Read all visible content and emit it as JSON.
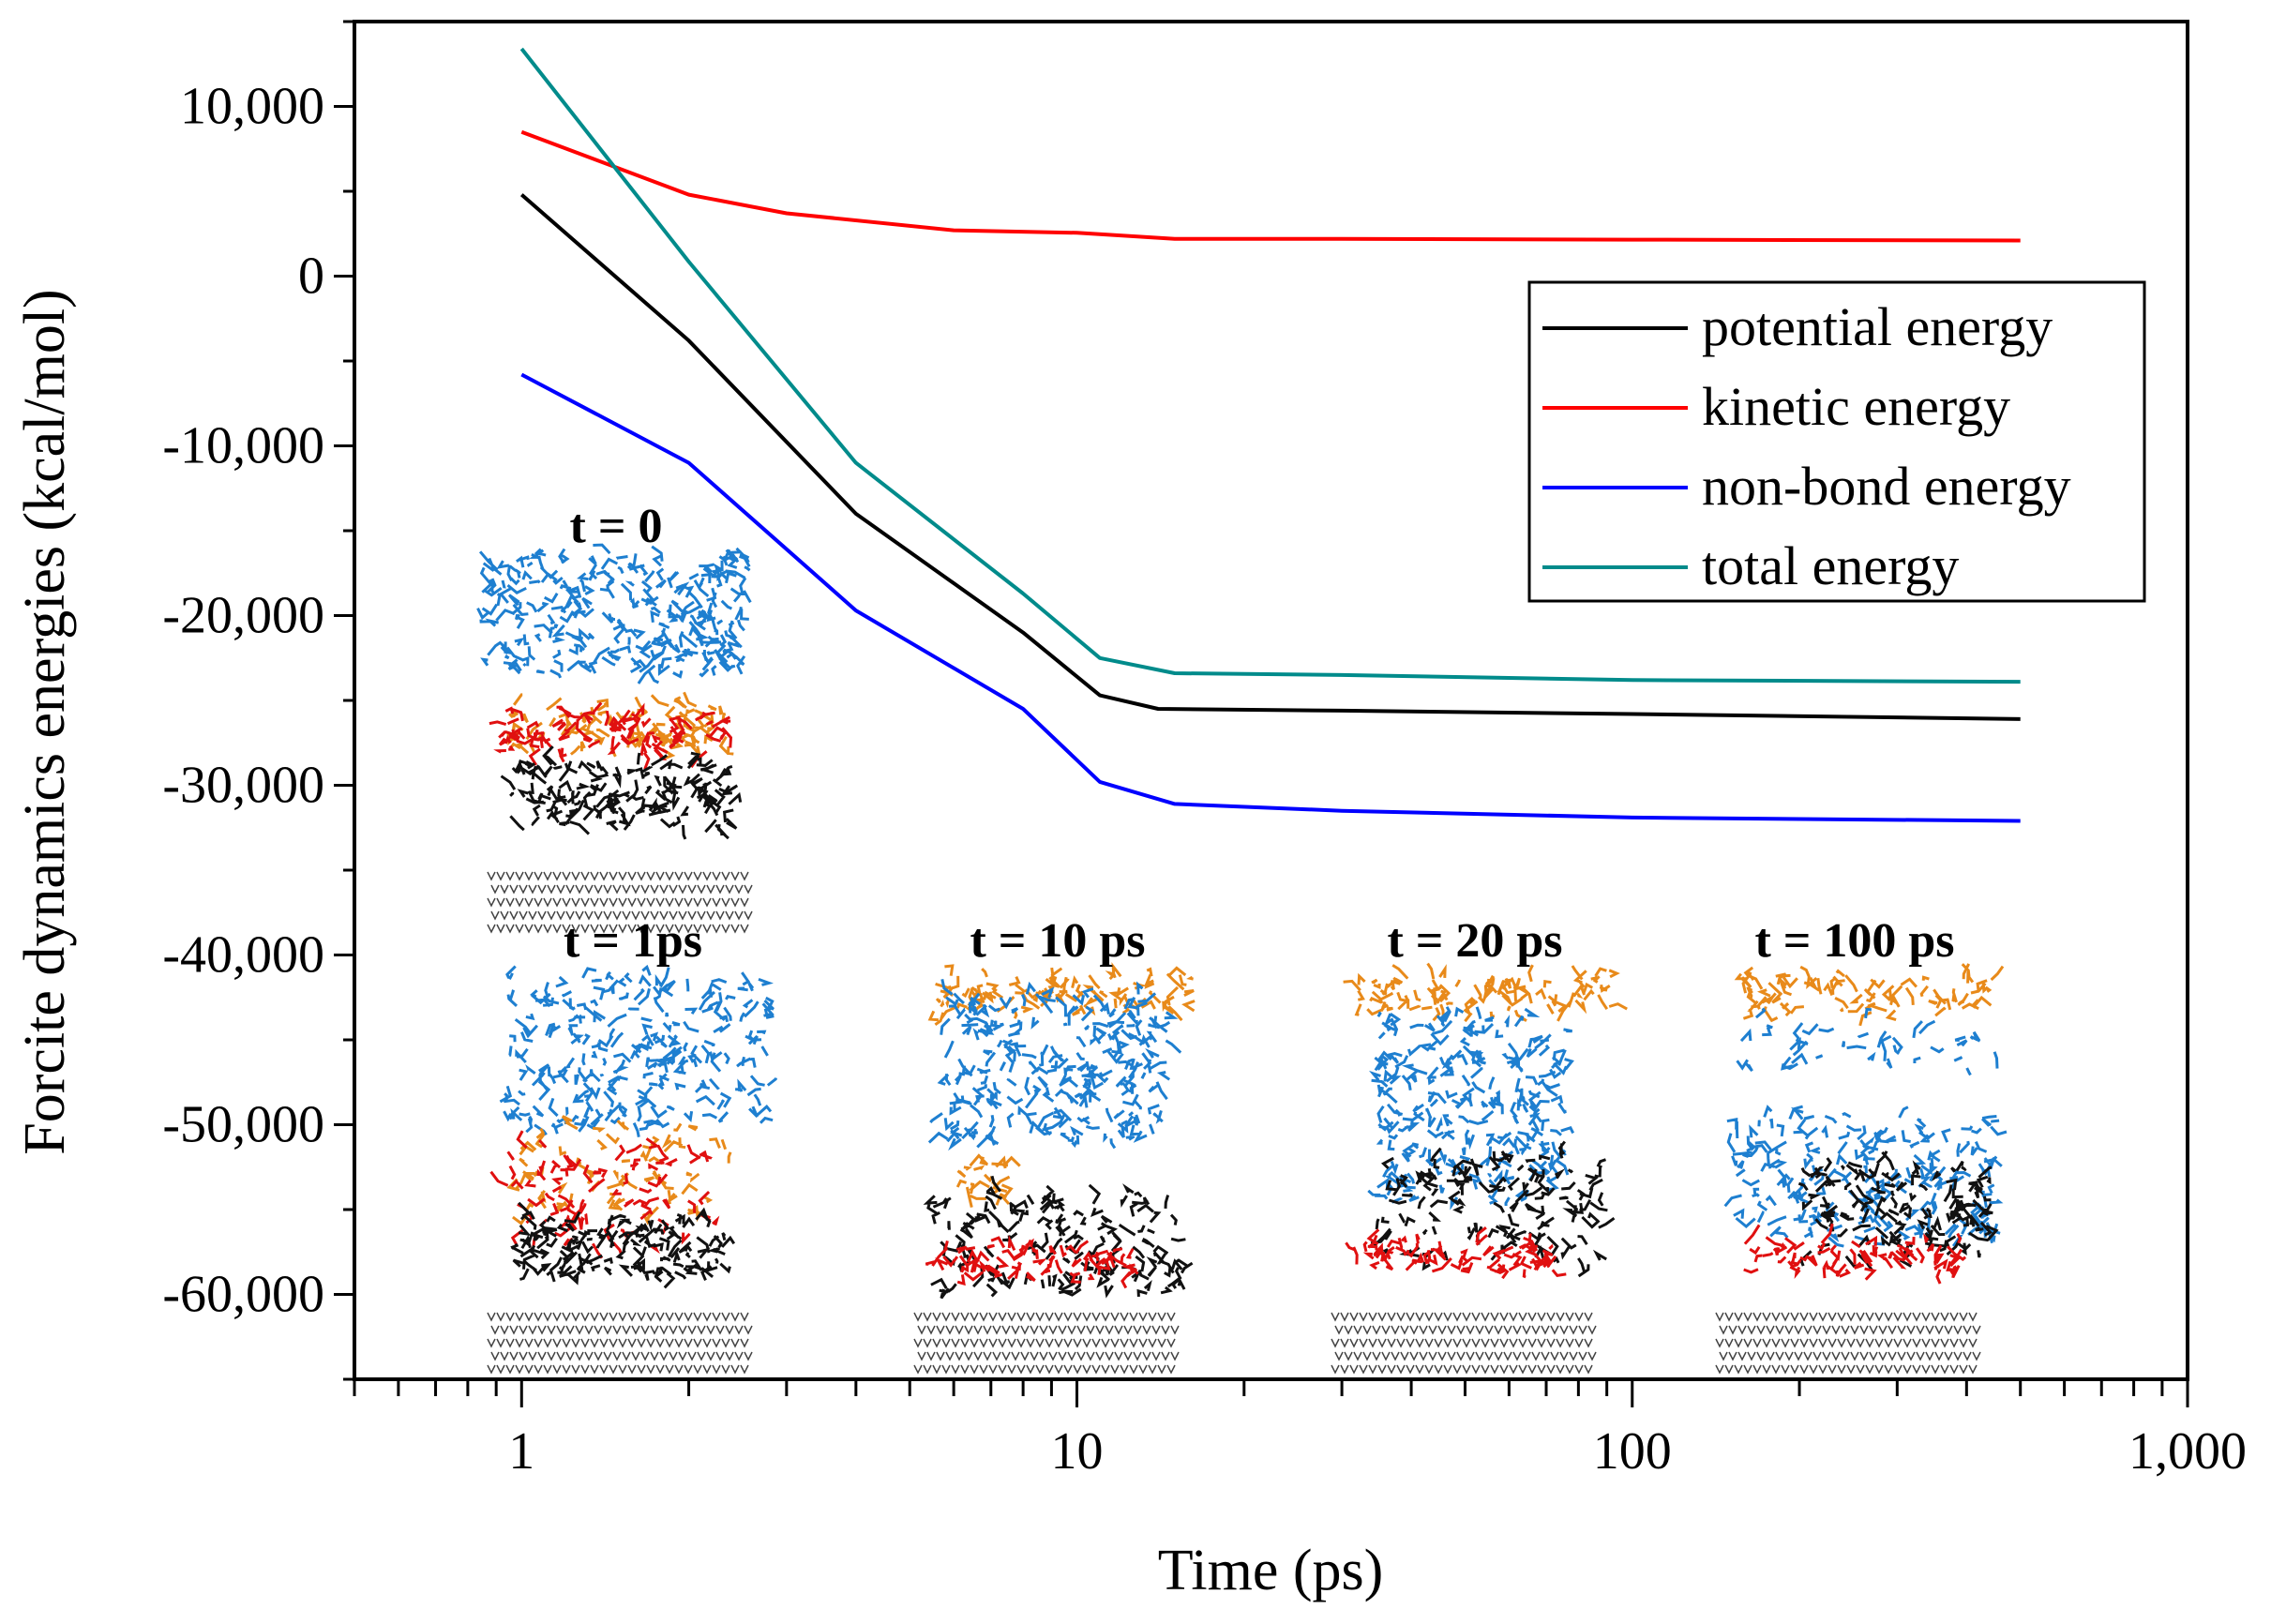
{
  "chart_data": {
    "type": "line",
    "title": "",
    "xlabel": "Time (ps)",
    "ylabel": "Forcite dynamics energies (kcal/mol)",
    "xscale": "log",
    "xlim": [
      0.5,
      1000
    ],
    "ylim": [
      -65000,
      15000
    ],
    "xticks": [
      1,
      10,
      100,
      1000
    ],
    "xtick_labels": [
      "1",
      "10",
      "100",
      "1,000"
    ],
    "yticks": [
      10000,
      0,
      -10000,
      -20000,
      -30000,
      -40000,
      -50000,
      -60000
    ],
    "ytick_labels": [
      "10,000",
      "0",
      "-10,000",
      "-20,000",
      "-30,000",
      "-40,000",
      "-50,000",
      "-60,000"
    ],
    "grid": false,
    "legend_position": "top-right",
    "series": [
      {
        "name": "potential energy",
        "color": "#000000",
        "x": [
          1,
          2,
          4,
          8,
          11,
          14,
          30,
          100,
          500
        ],
        "y": [
          4800,
          -3800,
          -14000,
          -21000,
          -24700,
          -25500,
          -25600,
          -25800,
          -26100
        ]
      },
      {
        "name": "kinetic energy",
        "color": "#ff0000",
        "x": [
          1,
          2,
          3,
          6,
          10,
          15,
          30,
          100,
          500
        ],
        "y": [
          8500,
          4800,
          3700,
          2700,
          2550,
          2200,
          2200,
          2150,
          2100
        ]
      },
      {
        "name": "non-bond energy",
        "color": "#0000ff",
        "x": [
          1,
          2,
          4,
          8,
          11,
          15,
          30,
          100,
          500
        ],
        "y": [
          -5800,
          -11000,
          -19700,
          -25500,
          -29800,
          -31100,
          -31500,
          -31900,
          -32100
        ]
      },
      {
        "name": "total energy",
        "color": "#008b8b",
        "x": [
          1,
          2,
          4,
          8,
          11,
          15,
          30,
          100,
          500
        ],
        "y": [
          13400,
          850,
          -11000,
          -18700,
          -22500,
          -23400,
          -23500,
          -23800,
          -23900
        ]
      }
    ],
    "annotations": [
      "t = 0",
      "t = 1ps",
      "t = 10 ps",
      "t = 20 ps",
      "t = 100 ps"
    ]
  }
}
